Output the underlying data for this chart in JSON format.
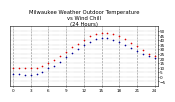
{
  "title": "Milwaukee Weather Outdoor Temperature\nvs Wind Chill\n(24 Hours)",
  "title_fontsize": 3.8,
  "background_color": "#ffffff",
  "grid_color": "#888888",
  "hours": [
    0,
    1,
    2,
    3,
    4,
    5,
    6,
    7,
    8,
    9,
    10,
    11,
    12,
    13,
    14,
    15,
    16,
    17,
    18,
    19,
    20,
    21,
    22,
    23,
    24
  ],
  "temp": [
    10,
    10,
    9,
    9,
    10,
    12,
    15,
    18,
    22,
    27,
    32,
    36,
    40,
    44,
    47,
    48,
    48,
    46,
    44,
    41,
    37,
    33,
    29,
    25,
    22
  ],
  "wind_chill": [
    3,
    3,
    2,
    2,
    3,
    5,
    9,
    12,
    16,
    21,
    26,
    30,
    34,
    38,
    41,
    42,
    42,
    40,
    38,
    35,
    31,
    28,
    25,
    22,
    20
  ],
  "temp_color": "#dd0000",
  "wind_chill_color": "#000099",
  "black_dot_color": "#000000",
  "marker_size": 1.2,
  "ylim": [
    -10,
    55
  ],
  "yticks": [
    -5,
    0,
    5,
    10,
    15,
    20,
    25,
    30,
    35,
    40,
    45,
    50
  ],
  "ytick_fontsize": 3.0,
  "xtick_fontsize": 3.0,
  "x_grid_positions": [
    0,
    3,
    6,
    9,
    12,
    15,
    18,
    21,
    24
  ],
  "x_labels": [
    "0",
    "3",
    "6",
    "9",
    "12",
    "15",
    "18",
    "21",
    "24"
  ]
}
